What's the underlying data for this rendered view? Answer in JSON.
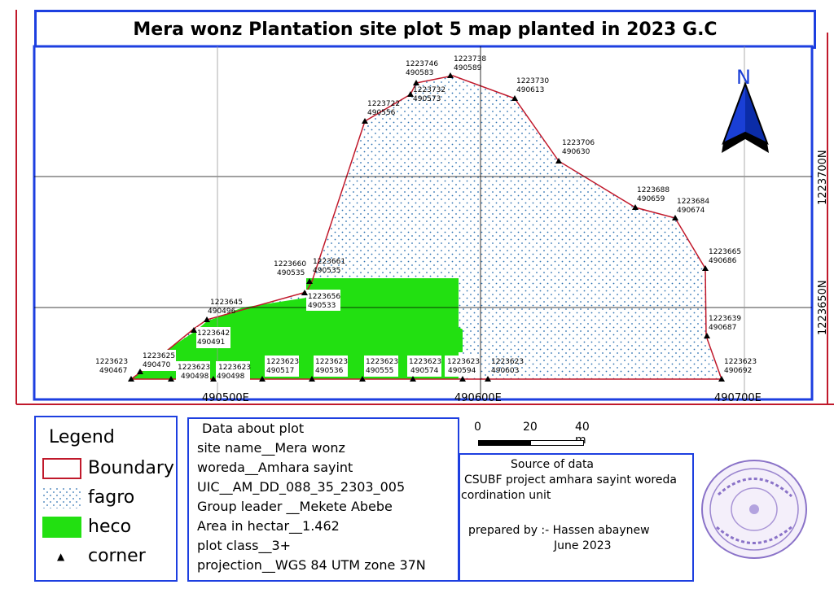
{
  "title": "Mera wonz Plantation site plot 5 map planted in 2023 G.C",
  "north_arrow": {
    "label": "N",
    "icon": "north-arrow-icon",
    "color": "#1a3fd6"
  },
  "colors": {
    "frame": "#1d3fe0",
    "boundary": "#c0192b",
    "heco": "#22e011",
    "fagro_dots": "#2a6fb0",
    "grid": "#000000"
  },
  "axis_labels": {
    "x": [
      "490500E",
      "490600E",
      "490700E"
    ],
    "y": [
      "1223700N",
      "1223650N"
    ]
  },
  "points": [
    {
      "n": "1223746",
      "e": "490583"
    },
    {
      "n": "1223738",
      "e": "490589"
    },
    {
      "n": "1223730",
      "e": "490613"
    },
    {
      "n": "1223732",
      "e": "490573"
    },
    {
      "n": "1223722",
      "e": "490556"
    },
    {
      "n": "1223706",
      "e": "490630"
    },
    {
      "n": "1223688",
      "e": "490659"
    },
    {
      "n": "1223684",
      "e": "490674"
    },
    {
      "n": "1223665",
      "e": "490686"
    },
    {
      "n": "1223660",
      "e": "490535"
    },
    {
      "n": "1223661",
      "e": "490535"
    },
    {
      "n": "1223656",
      "e": "490533"
    },
    {
      "n": "1223645",
      "e": "490496"
    },
    {
      "n": "1223642",
      "e": "490491"
    },
    {
      "n": "1223639",
      "e": "490687"
    },
    {
      "n": "1223625",
      "e": "490470"
    },
    {
      "n": "1223623",
      "e": "490467"
    },
    {
      "n": "1223623",
      "e": "490498"
    },
    {
      "n": "1223623",
      "e": "490498"
    },
    {
      "n": "1223623",
      "e": "490517"
    },
    {
      "n": "1223623",
      "e": "490536"
    },
    {
      "n": "1223623",
      "e": "490555"
    },
    {
      "n": "1223623",
      "e": "490574"
    },
    {
      "n": "1223623",
      "e": "490594"
    },
    {
      "n": "1223623",
      "e": "490603"
    },
    {
      "n": "1223623",
      "e": "490692"
    }
  ],
  "legend": {
    "title": "Legend",
    "items": [
      {
        "label": "Boundary"
      },
      {
        "label": "fagro"
      },
      {
        "label": "heco"
      },
      {
        "label": "corner",
        "glyph": "▲"
      }
    ]
  },
  "plot_info": {
    "heading": "Data about plot",
    "lines": [
      "site name__Mera wonz",
      "woreda__Amhara sayint",
      "UIC__AM_DD_088_35_2303_005",
      "Group leader __Mekete Abebe",
      "Area in hectar__1.462",
      "plot class__3+",
      "projection__WGS 84 UTM zone 37N"
    ]
  },
  "scale_bar": {
    "labels": [
      "0",
      "20",
      "40 m"
    ]
  },
  "source": {
    "heading": "Source of data",
    "line1": "CSUBF project amhara sayint woreda",
    "line2": "cordination unit",
    "prepared": "prepared by :- Hassen abaynew",
    "date": "June 2023"
  },
  "stamp": {
    "description_icon": "official-stamp-icon"
  }
}
